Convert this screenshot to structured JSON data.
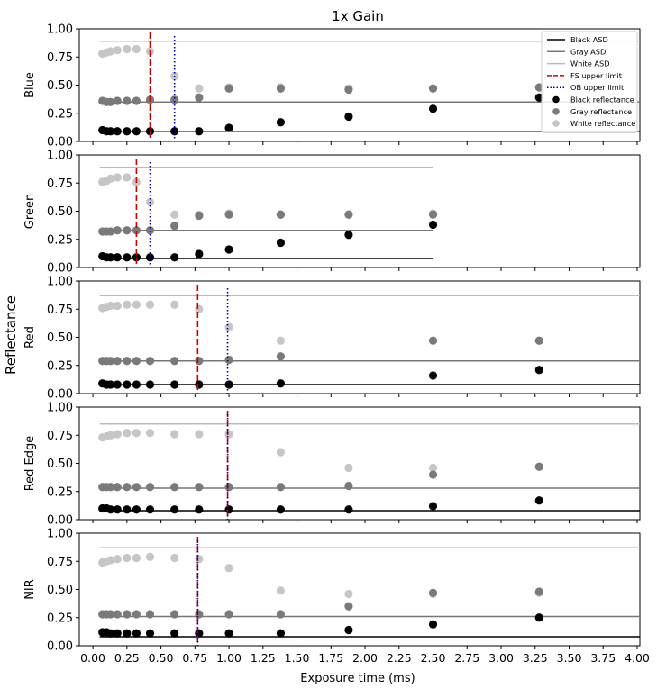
{
  "chart_data": {
    "type": "scatter",
    "title": "1x Gain",
    "xlabel": "Exposure time (ms)",
    "ylabel": "Reflectance",
    "xlim": [
      -0.1,
      4.02
    ],
    "ylim": [
      0,
      1
    ],
    "xticks": [
      "0.00",
      "0.25",
      "0.50",
      "0.75",
      "1.00",
      "1.25",
      "1.50",
      "1.75",
      "2.00",
      "2.25",
      "2.50",
      "2.75",
      "3.00",
      "3.25",
      "3.50",
      "3.75",
      "4.00"
    ],
    "yticks": [
      "0.00",
      "0.25",
      "0.50",
      "0.75",
      "1.00"
    ],
    "legend": {
      "placement": "top-right",
      "entries": [
        {
          "label": "Black ASD",
          "kind": "line",
          "color": "#000000"
        },
        {
          "label": "Gray ASD",
          "kind": "line",
          "color": "#777777"
        },
        {
          "label": "White ASD",
          "kind": "line",
          "color": "#bbbbbb"
        },
        {
          "label": "FS upper limit",
          "kind": "dashed",
          "color": "#cc0000"
        },
        {
          "label": "OB upper limit",
          "kind": "dotted",
          "color": "#0000aa"
        },
        {
          "label": "Black reflectance",
          "kind": "marker",
          "color": "#000000"
        },
        {
          "label": "Gray reflectance",
          "kind": "marker",
          "color": "#7a7a7a"
        },
        {
          "label": "White reflectance",
          "kind": "marker",
          "color": "#c6c6c6"
        }
      ]
    },
    "panels": [
      {
        "name": "Blue",
        "asd": {
          "black": 0.09,
          "gray": 0.35,
          "white": 0.89,
          "x_range": [
            0.05,
            4.02
          ]
        },
        "fs_limit": 0.42,
        "ob_limit": 0.6,
        "x": [
          0.07,
          0.1,
          0.13,
          0.18,
          0.25,
          0.32,
          0.42,
          0.6,
          0.78,
          1.0,
          1.38,
          1.88,
          2.5,
          3.28
        ],
        "black": [
          0.1,
          0.09,
          0.09,
          0.09,
          0.09,
          0.09,
          0.09,
          0.09,
          0.09,
          0.12,
          0.17,
          0.22,
          0.29,
          0.39
        ],
        "gray": [
          0.36,
          0.35,
          0.35,
          0.36,
          0.36,
          0.36,
          0.37,
          0.37,
          0.39,
          0.47,
          0.47,
          0.46,
          0.47,
          0.48
        ],
        "white": [
          0.78,
          0.79,
          0.8,
          0.81,
          0.82,
          0.82,
          0.8,
          0.58,
          0.47,
          0.48,
          0.48,
          0.47,
          0.47,
          0.48
        ]
      },
      {
        "name": "Green",
        "asd": {
          "black": 0.08,
          "gray": 0.33,
          "white": 0.89,
          "x_range": [
            0.05,
            2.5
          ]
        },
        "fs_limit": 0.32,
        "ob_limit": 0.42,
        "x": [
          0.07,
          0.1,
          0.13,
          0.18,
          0.25,
          0.32,
          0.42,
          0.6,
          0.78,
          1.0,
          1.38,
          1.88,
          2.5
        ],
        "black": [
          0.1,
          0.09,
          0.09,
          0.09,
          0.09,
          0.09,
          0.09,
          0.09,
          0.12,
          0.16,
          0.22,
          0.29,
          0.38
        ],
        "gray": [
          0.32,
          0.32,
          0.32,
          0.33,
          0.33,
          0.33,
          0.33,
          0.37,
          0.46,
          0.47,
          0.47,
          0.47,
          0.47
        ],
        "white": [
          0.76,
          0.77,
          0.79,
          0.8,
          0.8,
          0.76,
          0.58,
          0.47,
          0.47,
          0.48,
          0.47,
          0.47,
          0.48
        ]
      },
      {
        "name": "Red",
        "asd": {
          "black": 0.08,
          "gray": 0.29,
          "white": 0.87,
          "x_range": [
            0.05,
            4.02
          ]
        },
        "fs_limit": 0.77,
        "ob_limit": 0.99,
        "x": [
          0.07,
          0.1,
          0.13,
          0.18,
          0.25,
          0.32,
          0.42,
          0.6,
          0.78,
          1.0,
          1.38,
          2.5,
          3.28
        ],
        "black": [
          0.09,
          0.08,
          0.08,
          0.08,
          0.08,
          0.08,
          0.08,
          0.08,
          0.08,
          0.08,
          0.09,
          0.16,
          0.21
        ],
        "gray": [
          0.29,
          0.29,
          0.29,
          0.29,
          0.29,
          0.29,
          0.29,
          0.29,
          0.29,
          0.3,
          0.33,
          0.47,
          0.47
        ],
        "white": [
          0.76,
          0.77,
          0.78,
          0.78,
          0.79,
          0.79,
          0.79,
          0.79,
          0.75,
          0.59,
          0.47,
          0.47,
          0.47
        ]
      },
      {
        "name": "Red Edge",
        "asd": {
          "black": 0.08,
          "gray": 0.28,
          "white": 0.85,
          "x_range": [
            0.05,
            4.02
          ]
        },
        "fs_limit": 0.99,
        "ob_limit": 0.99,
        "x": [
          0.07,
          0.1,
          0.13,
          0.18,
          0.25,
          0.32,
          0.42,
          0.6,
          0.78,
          1.0,
          1.38,
          1.88,
          2.5,
          3.28
        ],
        "black": [
          0.1,
          0.1,
          0.09,
          0.09,
          0.09,
          0.09,
          0.09,
          0.09,
          0.09,
          0.09,
          0.09,
          0.09,
          0.12,
          0.17
        ],
        "gray": [
          0.29,
          0.29,
          0.29,
          0.29,
          0.29,
          0.29,
          0.29,
          0.29,
          0.29,
          0.29,
          0.29,
          0.3,
          0.4,
          0.47
        ],
        "white": [
          0.73,
          0.74,
          0.75,
          0.76,
          0.77,
          0.77,
          0.77,
          0.76,
          0.76,
          0.76,
          0.6,
          0.46,
          0.46,
          0.47
        ]
      },
      {
        "name": "NIR",
        "asd": {
          "black": 0.08,
          "gray": 0.26,
          "white": 0.87,
          "x_range": [
            0.05,
            4.02
          ]
        },
        "fs_limit": 0.77,
        "ob_limit": 0.77,
        "x": [
          0.07,
          0.1,
          0.13,
          0.18,
          0.25,
          0.32,
          0.42,
          0.6,
          0.78,
          1.0,
          1.38,
          1.88,
          2.5,
          3.28
        ],
        "black": [
          0.12,
          0.12,
          0.11,
          0.11,
          0.11,
          0.11,
          0.11,
          0.11,
          0.11,
          0.11,
          0.11,
          0.14,
          0.19,
          0.25
        ],
        "gray": [
          0.28,
          0.28,
          0.28,
          0.28,
          0.28,
          0.28,
          0.28,
          0.28,
          0.28,
          0.28,
          0.28,
          0.35,
          0.47,
          0.48
        ],
        "white": [
          0.74,
          0.75,
          0.76,
          0.77,
          0.78,
          0.78,
          0.79,
          0.78,
          0.77,
          0.69,
          0.49,
          0.46,
          0.46,
          0.47
        ]
      }
    ]
  }
}
